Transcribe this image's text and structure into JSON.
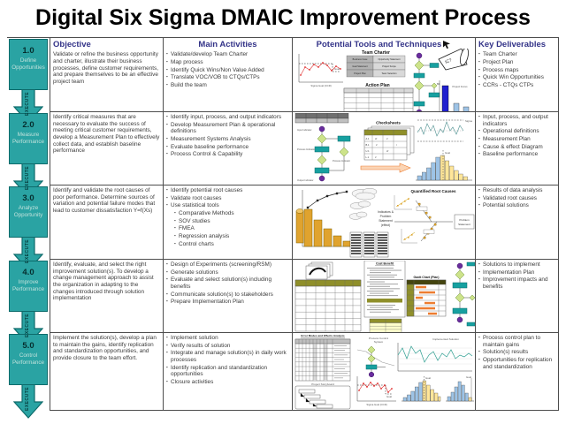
{
  "title": "Digital Six Sigma DMAIC Improvement Process",
  "execute_label": "EXECUTE",
  "headers": {
    "objective": "Objective",
    "activities": "Main Activities",
    "tools": "Potential Tools and Techniques",
    "deliverables": "Key Deliverables"
  },
  "colors": {
    "stage_teal": "#2aa3a3",
    "stage_border": "#0d6b6b",
    "header_navy": "#333388",
    "body_text": "#3b3b3b",
    "table_border": "#4d4d4d",
    "accent_orange": "#ed7d31",
    "accent_gold": "#e0a32e",
    "accent_olive": "#8f8f2a",
    "accent_purple": "#6a2d9e",
    "accent_green": "#cde38a",
    "bar_dark_blue": "#1f1fcf",
    "bar_light_blue": "#9dc3e6",
    "bar_yellow": "#ffe699",
    "line_red": "#e03030",
    "line_teal": "#2a9d8f"
  },
  "rows": [
    {
      "stage": {
        "number": "1.0",
        "line1": "Define",
        "line2": "Opportunities"
      },
      "objective": "Validate or refine the business opportunity and charter, illustrate their business processes, define customer requirements, and prepare themselves to be an effective project team",
      "activities": [
        "Validate/develop Team Charter",
        "Map process",
        "Identify Quick Wins/Non Value Added",
        "Translate VOC/VOB to CTQs/CTPs",
        "Build the team"
      ],
      "deliverables": [
        "Team Charter",
        "Project Plan",
        "Process maps",
        "Quick Win Opportunities",
        "CCRs - CTQs CTPs"
      ],
      "tools": {
        "line_chart_goal": "Goal",
        "line_chart_xlabel": "Sigma Goal (CCR)",
        "team_charter_title": "Team Charter",
        "team_charter_cells": [
          "Business Case",
          "Opportunity Statement",
          "Goal Statement",
          "Project Scope",
          "Project Plan",
          "Team Selection"
        ],
        "action_plan_title": "Action Plan",
        "megaphone_text": "IC?",
        "bar_chart_title": "Project Focus",
        "bar_chart_dollar": "$$",
        "bar_chart_xlabel": "CCRs"
      }
    },
    {
      "stage": {
        "number": "2.0",
        "line1": "Measure",
        "line2": "Performance"
      },
      "objective": "Identify critical measures that are necessary to evaluate the success of meeting critical customer requirements, develop a Measurement Plan to effectively collect data, and establish baseline performance",
      "activities": [
        "Identify input, process, and output indicators",
        "Develop Measurement Plan & operational definitions",
        "Measurement Systems Analysis",
        "Evaluate baseline performance",
        "Process Control & Capability"
      ],
      "deliverables": [
        "Input, process, and output indicators",
        "Operational definitions",
        "Measurement Plan",
        "Cause & effect Diagram",
        "Baseline performance"
      ],
      "tools": {
        "label_input": "Input Indicator",
        "label_process": "Process Indicator",
        "label_process2": "Process Indicator",
        "label_output": "Output Indicator",
        "checksheets_title": "Checksheets",
        "checksheet_rows": [
          "A.1",
          "B.1",
          "U.1",
          "L.1"
        ],
        "sigma_label": "Sigma",
        "hist_goal": "Goal"
      }
    },
    {
      "stage": {
        "number": "3.0",
        "line1": "Analyze",
        "line2": "Opportunity"
      },
      "objective": "Identify and validate the root causes of poor performance. Determine sources of variation and potential failure modes that lead to customer dissatisfaction   Y=f(Xs)",
      "activities": [
        "Identify potential root causes",
        "Validate root causes",
        "Use statistical tools",
        {
          "text": "Comparative Methods",
          "indent": true
        },
        {
          "text": "SOV studies",
          "indent": true
        },
        {
          "text": "FMEA",
          "indent": true
        },
        {
          "text": "Regression analysis",
          "indent": true
        },
        {
          "text": "Control charts",
          "indent": true
        }
      ],
      "deliverables": [
        "Results of data analysis",
        "Validated root causes",
        "Potential solutions"
      ],
      "tools": {
        "note_lines": [
          "Indicators &",
          "Problem",
          "Statement",
          "(effect)"
        ],
        "fishbone_title": "Quantified Root Causes",
        "problem_line1": "Problem",
        "problem_line2": "Statement"
      }
    },
    {
      "stage": {
        "number": "4.0",
        "line1": "Improve",
        "line2": "Performance"
      },
      "objective": "Identify, evaluate, and select the right improvement solution(s). To develop a change management approach to assist the organization in adapting to the changes introduced through solution implementation",
      "activities": [
        "Design of Experiments (screening/RSM)",
        "Generate solutions",
        "Evaluate and select solution(s) including benefits",
        "Communicate solution(s) to stakeholders",
        "Prepare Implementation Plan"
      ],
      "deliverables": [
        "Solutions to implement",
        "Implementation Plan",
        "Improvement impacts and benefits"
      ],
      "tools": {
        "cost_benefit_title": "Cost Benefit",
        "gantt_title": "Gantt Chart (Plan)"
      }
    },
    {
      "stage": {
        "number": "5.0",
        "line1": "Control",
        "line2": "Performance"
      },
      "objective": "Implement the solution(s), develop a plan to maintain the gains, identify replication and standardization opportunities, and provide closure to the team effort.",
      "activities": [
        "Implement solution",
        "Verify results of solution",
        "Integrate and manage solution(s) in daily work processes",
        "Identify replication and standardization opportunities",
        "Closure activities"
      ],
      "deliverables": [
        "Process control plan to maintain gains",
        "Solution(s) results",
        "Opportunities for replication and standardization"
      ],
      "tools": {
        "fmea_title": "Error Modes and Effects Analysis",
        "storyboard_title": "Project Storyboard",
        "pcs_line1": "Process Control",
        "pcs_line2": "System",
        "implemented_title": "Implemented Solution",
        "goal_label": "Goal",
        "sigma_xlabel": "Sigma Goal (CCR)",
        "hist1_goal": "Goal",
        "hist2_goal": "Goal"
      }
    }
  ]
}
